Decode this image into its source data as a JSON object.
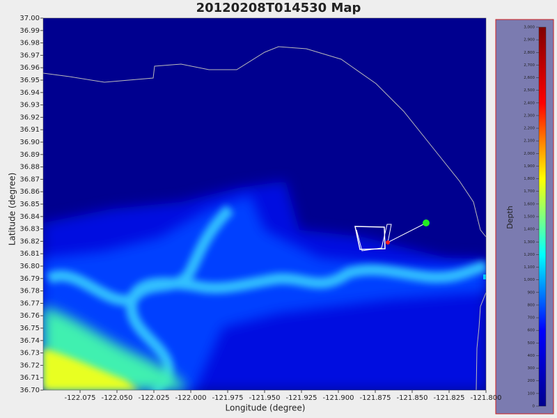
{
  "chart_data": {
    "type": "heatmap-map",
    "title": "20120208T014530 Map",
    "xlabel": "Longitude (degree)",
    "ylabel": "Latitude (degree)",
    "xlim": [
      -122.1,
      -121.8
    ],
    "xticks": [
      -122.075,
      {
        "value": -122.05,
        "label": "-122.050"
      },
      -122.025,
      {
        "value": -122,
        "label": "-122.000"
      },
      -121.975,
      {
        "value": -121.95,
        "label": "-121.950"
      },
      -121.925,
      {
        "value": -121.9,
        "label": "-121.900"
      },
      -121.875,
      {
        "value": -121.85,
        "label": "-121.850"
      },
      -121.825,
      {
        "value": -121.8,
        "label": "-121.800"
      }
    ],
    "ylim": [
      36.7,
      37
    ],
    "yticks": [
      {
        "value": 36.7,
        "label": "36.70"
      },
      36.71,
      36.72,
      36.73,
      36.74,
      36.75,
      36.76,
      36.77,
      36.78,
      36.79,
      {
        "value": 36.8,
        "label": "36.80"
      },
      36.81,
      36.82,
      36.83,
      36.84,
      36.85,
      36.86,
      36.87,
      36.88,
      36.89,
      {
        "value": 36.9,
        "label": "36.90"
      },
      36.91,
      36.92,
      36.93,
      36.94,
      36.95,
      36.96,
      36.97,
      36.98,
      36.99,
      {
        "value": 37,
        "label": "37.00"
      }
    ],
    "colorbar_label": "Depth",
    "colorbar_lim": [
      0,
      3000
    ],
    "colorbar_ticks": [
      0,
      100,
      200,
      300,
      400,
      500,
      600,
      700,
      800,
      900,
      {
        "value": 1000,
        "label": "1,000"
      },
      {
        "value": 1100,
        "label": "1,100"
      },
      {
        "value": 1200,
        "label": "1,200"
      },
      {
        "value": 1300,
        "label": "1,300"
      },
      {
        "value": 1400,
        "label": "1,400"
      },
      {
        "value": 1500,
        "label": "1,500"
      },
      {
        "value": 1600,
        "label": "1,600"
      },
      {
        "value": 1700,
        "label": "1,700"
      },
      {
        "value": 1800,
        "label": "1,800"
      },
      {
        "value": 1900,
        "label": "1,900"
      },
      {
        "value": 2000,
        "label": "2,000"
      },
      {
        "value": 2100,
        "label": "2,100"
      },
      {
        "value": 2200,
        "label": "2,200"
      },
      {
        "value": 2300,
        "label": "2,300"
      },
      {
        "value": 2400,
        "label": "2,400"
      },
      {
        "value": 2500,
        "label": "2,500"
      },
      {
        "value": 2600,
        "label": "2,600"
      },
      {
        "value": 2700,
        "label": "2,700"
      },
      {
        "value": 2800,
        "label": "2,800"
      },
      {
        "value": 2900,
        "label": "2,900"
      },
      {
        "value": 3000,
        "label": "3,000"
      }
    ],
    "colormap": [
      "#00008f",
      "#0000ff",
      "#00ffff",
      "#ffff00",
      "#ff0000",
      "#800000"
    ]
  }
}
